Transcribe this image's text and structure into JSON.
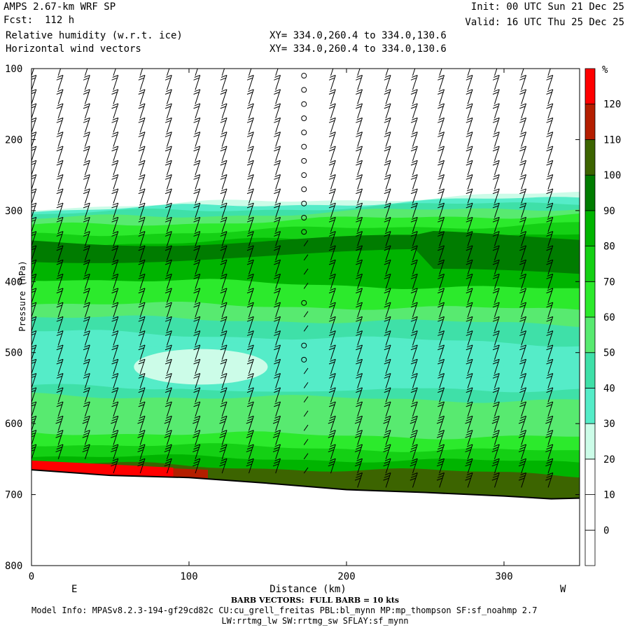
{
  "header": {
    "model": "AMPS 2.67-km WRF SP",
    "fcst": "Fcst:  112 h",
    "field1": "Relative humidity (w.r.t. ice)",
    "field2": "Horizontal wind vectors",
    "init": "Init: 00 UTC Sun 21 Dec 25",
    "valid": "Valid: 16 UTC Thu 25 Dec 25",
    "xy1": "XY= 334.0,260.4 to 334.0,130.6",
    "xy2": "XY= 334.0,260.4 to 334.0,130.6"
  },
  "footer": {
    "barb_note": "BARB VECTORS:  FULL BARB = 10 kts",
    "model_info": "Model Info: MPASv8.2.3-194-gf29cd82c CU:cu_grell_freitas PBL:bl_mynn MP:mp_thompson SF:sf_noahmp 2.7",
    "physics": "LW:rrtmg_lw SW:rrtmg_sw SFLAY:sf_mynn"
  },
  "chart_data": {
    "type": "heatmap",
    "xlabel": "Distance (km)",
    "ylabel": "Pressure (hPa)",
    "xlim": [
      0,
      348
    ],
    "ylim": [
      800,
      100
    ],
    "y_scale": "linear, inverted (pressure)",
    "x_ticks": [
      0,
      100,
      200,
      300
    ],
    "y_ticks": [
      100,
      200,
      300,
      400,
      500,
      600,
      700,
      800
    ],
    "x_end_labels": {
      "left": "E",
      "right": "W"
    },
    "colorbar": {
      "unit": "%",
      "levels": [
        0,
        10,
        20,
        30,
        40,
        50,
        60,
        70,
        80,
        90,
        100,
        110,
        120
      ],
      "colors": [
        "#ffffff",
        "#ffffff",
        "#ffffff",
        "#ccfce8",
        "#55ecc8",
        "#3fe0a8",
        "#58ea70",
        "#2cea2c",
        "#14d014",
        "#00b400",
        "#007c00",
        "#3c6400",
        "#b41e00",
        "#ff0000"
      ]
    },
    "rh_bands": [
      {
        "range": "0-30",
        "color": "#ffffff",
        "top_hPa": [
          100,
          100
        ]
      },
      {
        "range": "30-40",
        "color": "#ccfce8",
        "top_hPa": [
          296,
          276
        ]
      },
      {
        "range": "40-50",
        "color": "#55ecc8",
        "top_hPa": [
          300,
          282
        ]
      },
      {
        "range": "50-60",
        "color": "#3fe0a8",
        "top_hPa": [
          305,
          288
        ]
      },
      {
        "range": "60-70",
        "color": "#58ea70",
        "top_hPa": [
          312,
          295
        ]
      },
      {
        "range": "70-80",
        "color": "#2cea2c",
        "top_hPa": [
          322,
          305
        ]
      },
      {
        "range": "80-90",
        "color": "#14d014",
        "top_hPa": [
          335,
          318
        ]
      },
      {
        "range": "90-100",
        "color": "#00b400",
        "top_hPa": [
          348,
          335
        ]
      },
      {
        "range": "70-80",
        "color": "#2cea2c",
        "top_hPa": [
          395,
          412
        ]
      },
      {
        "range": "60-70",
        "color": "#58ea70",
        "top_hPa": [
          430,
          440
        ]
      },
      {
        "range": "50-60",
        "color": "#3fe0a8",
        "top_hPa": [
          450,
          460
        ]
      },
      {
        "range": "40-50",
        "color": "#55ecc8",
        "top_hPa": [
          470,
          488
        ]
      },
      {
        "range": "50-60",
        "color": "#3fe0a8",
        "top_hPa": [
          548,
          552
        ]
      },
      {
        "range": "60-70",
        "color": "#58ea70",
        "top_hPa": [
          560,
          568
        ]
      },
      {
        "range": "70-80",
        "color": "#2cea2c",
        "top_hPa": [
          612,
          620
        ]
      },
      {
        "range": "80-90",
        "color": "#14d014",
        "top_hPa": [
          628,
          640
        ]
      },
      {
        "range": "90-100",
        "color": "#00b400",
        "top_hPa": [
          645,
          655
        ]
      },
      {
        "range": "100-110",
        "color": "#3c6400",
        "top_hPa": [
          655,
          672
        ]
      }
    ],
    "dry_pocket_40": {
      "color": "#55ecc8",
      "x_km": [
        20,
        300
      ],
      "p_hPa": [
        485,
        555
      ]
    },
    "dry_pocket_30": {
      "color": "#ccfce8",
      "x_km": [
        65,
        150
      ],
      "p_hPa": [
        495,
        545
      ]
    },
    "moist_core_100": {
      "color": "#007c00",
      "x_km": [
        0,
        348
      ],
      "p_hPa": [
        342,
        400
      ]
    },
    "supersaturation": [
      {
        "range": "110-120",
        "color": "#b41e00",
        "x_km": [
          0,
          112
        ],
        "p_hPa": [
          655,
          680
        ]
      },
      {
        "range": ">120",
        "color": "#ff0000",
        "x_km": [
          0,
          90
        ],
        "p_hPa": [
          652,
          675
        ]
      }
    ],
    "terrain_surface": {
      "x_km": [
        0,
        50,
        100,
        150,
        200,
        250,
        300,
        330,
        348
      ],
      "p_hPa": [
        665,
        673,
        676,
        684,
        693,
        697,
        702,
        706,
        705
      ]
    },
    "wind_barbs": {
      "x_km": [
        0,
        17,
        34,
        52,
        69,
        86,
        104,
        121,
        138,
        155,
        173,
        190,
        207,
        225,
        242,
        259,
        277,
        294,
        311,
        328
      ],
      "p_hPa": [
        110,
        130,
        150,
        170,
        190,
        210,
        230,
        250,
        270,
        290,
        310,
        330,
        350,
        370,
        390,
        410,
        430,
        450,
        470,
        490,
        510,
        530,
        550,
        570,
        590,
        610,
        630,
        650,
        670,
        690
      ],
      "calm_column_km": 173,
      "units": "kts",
      "full_barb_kts": 10
    }
  }
}
